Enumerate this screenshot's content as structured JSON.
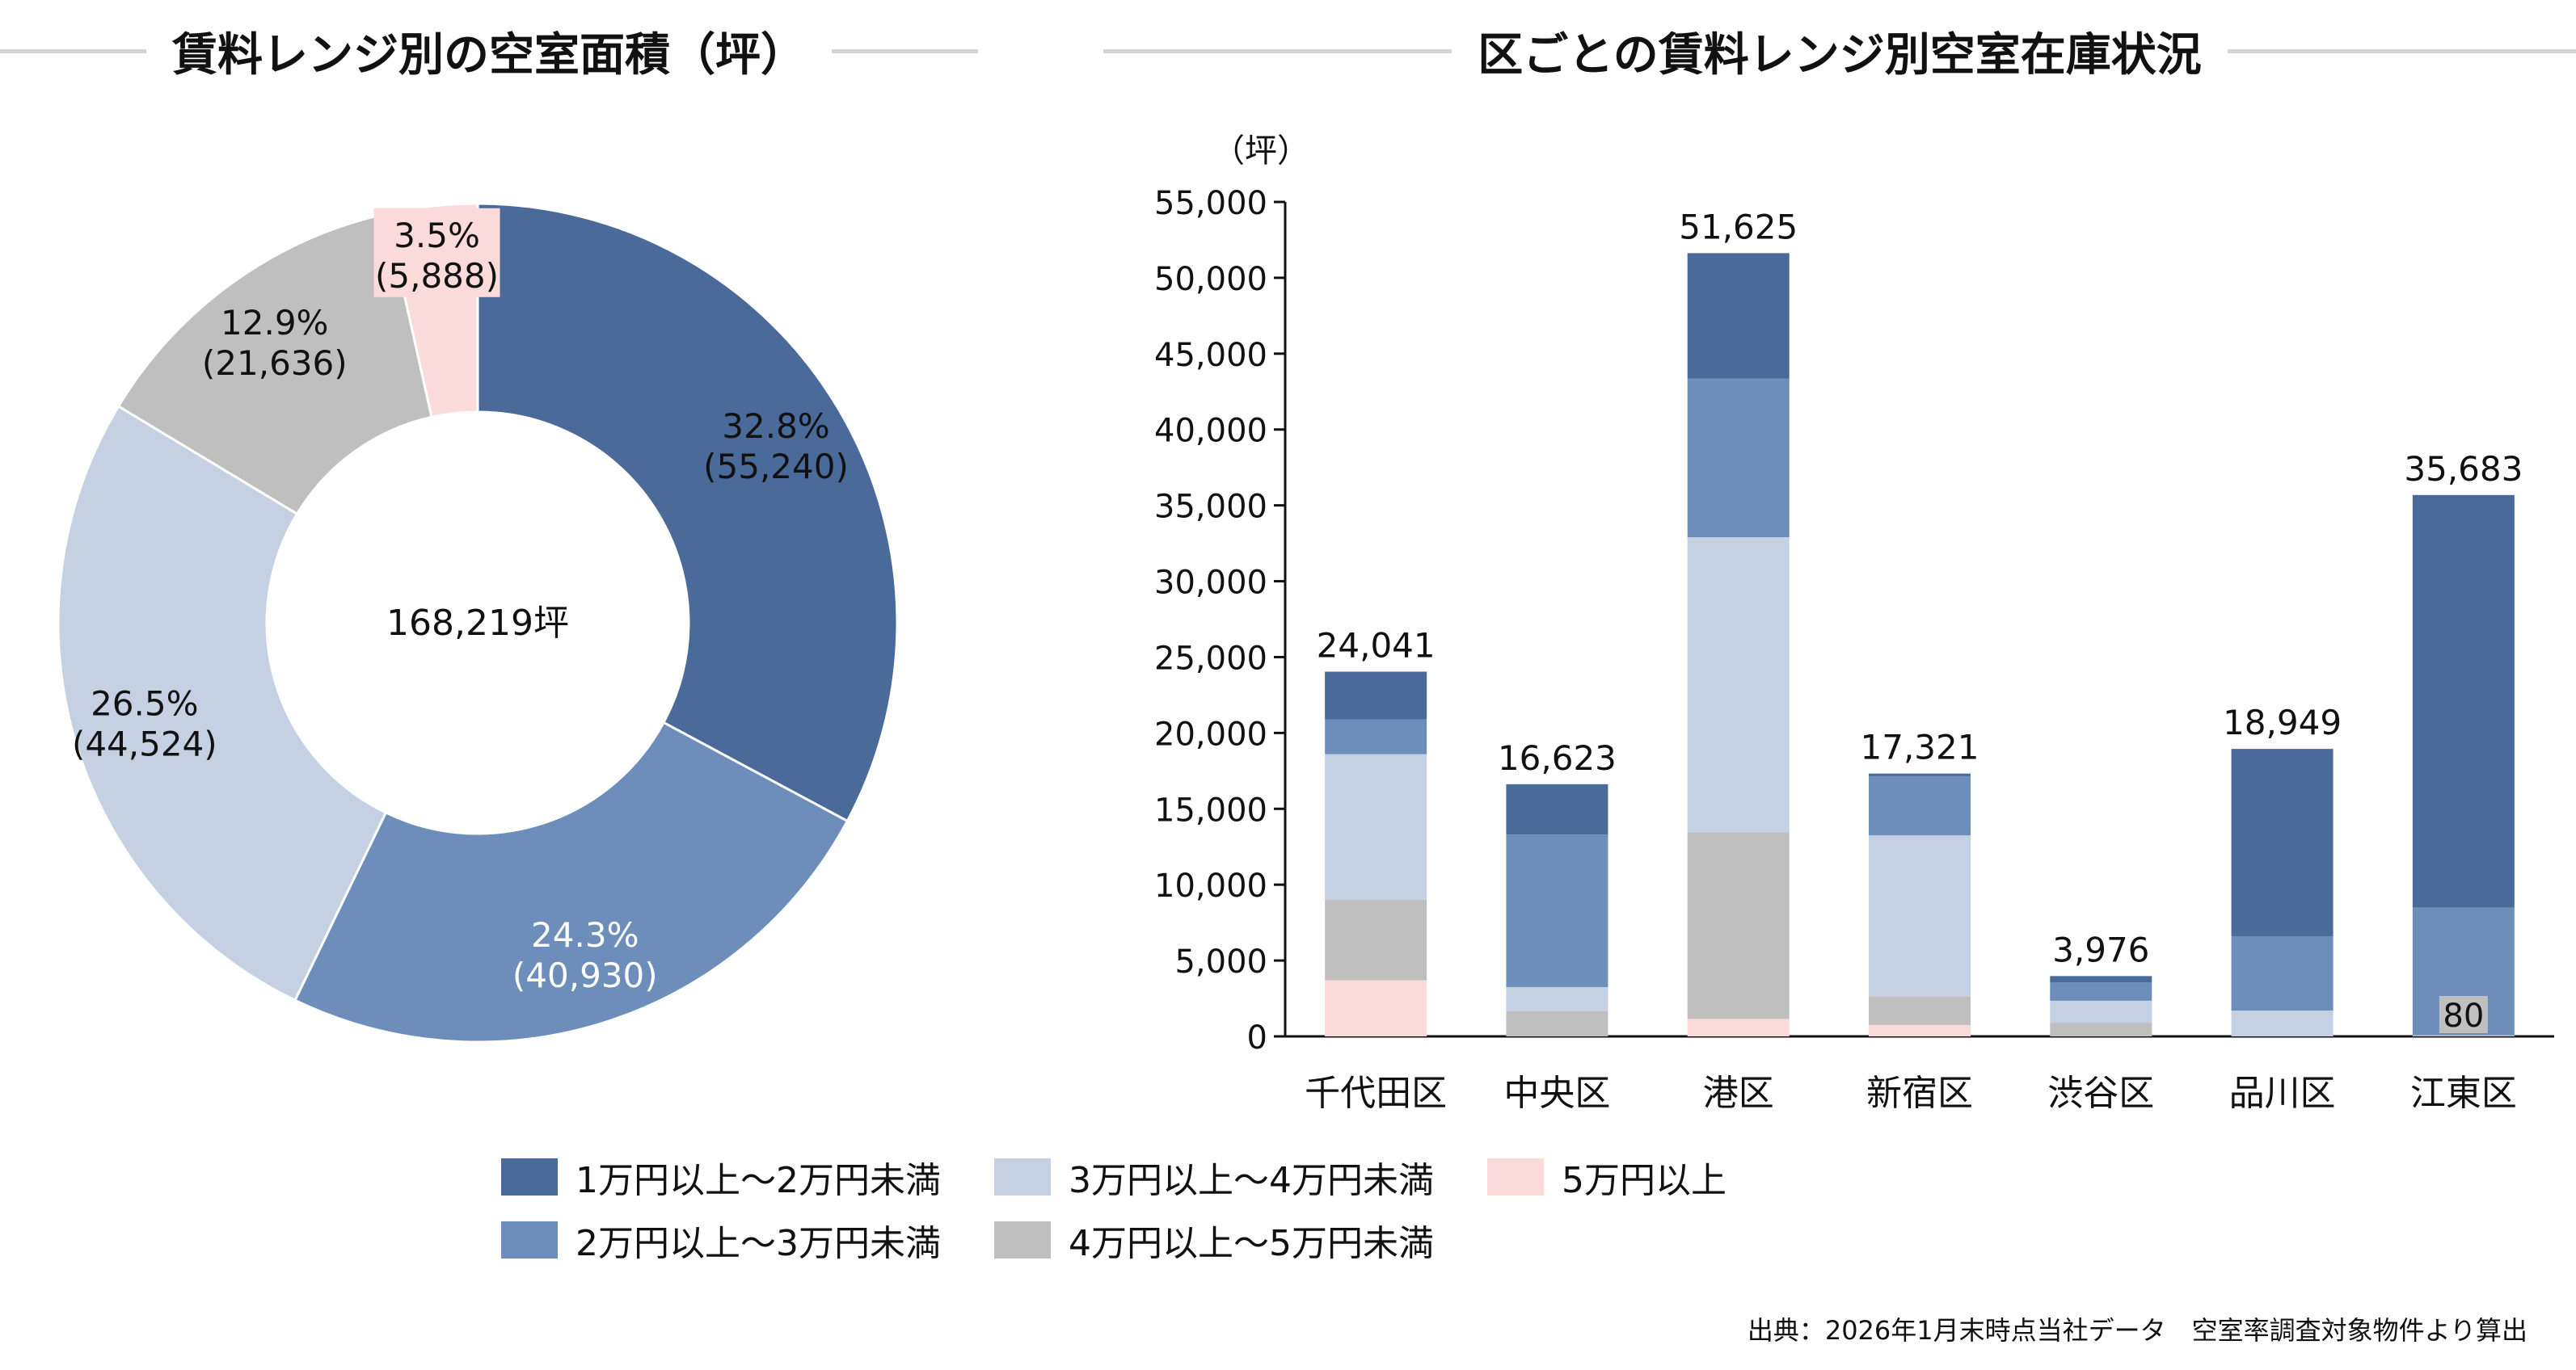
{
  "titles": {
    "donut": "賃料レンジ別の空室面積（坪）",
    "bars": "区ごとの賃料レンジ別空室在庫状況"
  },
  "colors": {
    "range1": "#4a6b9a",
    "range2": "#6d8eba",
    "range3": "#c5d0e3",
    "range4": "#bfbfbf",
    "range5": "#fadbd9",
    "header_line": "#d4d4d4"
  },
  "legend": {
    "items": [
      {
        "label": "1万円以上～2万円未満",
        "color": "#4a6b9a"
      },
      {
        "label": "2万円以上～3万円未満",
        "color": "#6d8eba"
      },
      {
        "label": "3万円以上～4万円未満",
        "color": "#c5d0e3"
      },
      {
        "label": "4万円以上～5万円未満",
        "color": "#bfbfbf"
      },
      {
        "label": "5万円以上",
        "color": "#fadbd9"
      }
    ]
  },
  "source": "出典：2026年1月末時点当社データ　空室率調査対象物件より算出",
  "chart_data": [
    {
      "type": "pie",
      "variant": "donut",
      "title": "賃料レンジ別の空室面積（坪）",
      "center_label": "168,219坪",
      "slices": [
        {
          "name": "1万円以上～2万円未満",
          "value": 55240,
          "percent_label": "32.8%",
          "value_label": "(55,240)"
        },
        {
          "name": "2万円以上～3万円未満",
          "value": 40930,
          "percent_label": "24.3%",
          "value_label": "(40,930)"
        },
        {
          "name": "3万円以上～4万円未満",
          "value": 44524,
          "percent_label": "26.5%",
          "value_label": "(44,524)"
        },
        {
          "name": "4万円以上～5万円未満",
          "value": 21636,
          "percent_label": "12.9%",
          "value_label": "(21,636)"
        },
        {
          "name": "5万円以上",
          "value": 5888,
          "percent_label": "3.5%",
          "value_label": "(5,888)"
        }
      ]
    },
    {
      "type": "bar",
      "stacked": true,
      "title": "区ごとの賃料レンジ別空室在庫状況",
      "ylabel": "（坪）",
      "ylim": [
        0,
        55000
      ],
      "yticks": [
        0,
        5000,
        10000,
        15000,
        20000,
        25000,
        30000,
        35000,
        40000,
        45000,
        50000,
        55000
      ],
      "ytick_labels": [
        "0",
        "5,000",
        "10,000",
        "15,000",
        "20,000",
        "25,000",
        "30,000",
        "35,000",
        "40,000",
        "45,000",
        "50,000",
        "55,000"
      ],
      "categories": [
        "千代田区",
        "中央区",
        "港区",
        "新宿区",
        "渋谷区",
        "品川区",
        "江東区"
      ],
      "totals": [
        "24,041",
        "16,623",
        "51,625",
        "17,321",
        "3,976",
        "18,949",
        "35,683"
      ],
      "series": [
        {
          "name": "5万円以上",
          "values": [
            3700,
            0,
            1150,
            750,
            0,
            0,
            0
          ]
        },
        {
          "name": "4万円以上～5万円未満",
          "values": [
            5300,
            1650,
            12300,
            1900,
            900,
            0,
            80
          ]
        },
        {
          "name": "3万円以上～4万円未満",
          "values": [
            9600,
            1600,
            19450,
            10600,
            1450,
            1700,
            0
          ]
        },
        {
          "name": "2万円以上～3万円未満",
          "values": [
            2300,
            10050,
            10450,
            3900,
            1200,
            4900,
            8400
          ]
        },
        {
          "name": "1万円以上～2万円未満",
          "values": [
            3141,
            3323,
            8275,
            171,
            426,
            12349,
            27203
          ]
        }
      ],
      "annotations": [
        {
          "category": "江東区",
          "series": "4万円以上～5万円未満",
          "label": "80"
        }
      ]
    }
  ]
}
